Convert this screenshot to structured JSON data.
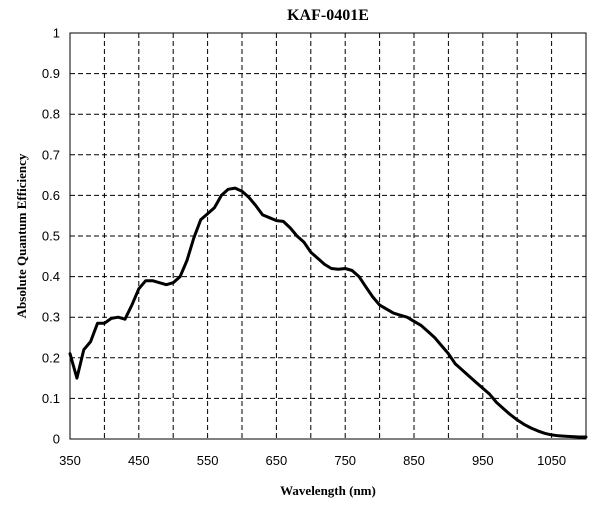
{
  "chart_data": {
    "type": "line",
    "title": "KAF-0401E",
    "xlabel": "Wavelength (nm)",
    "ylabel": "Absolute Quantum Efficiency",
    "xlim": [
      350,
      1100
    ],
    "ylim": [
      0,
      1
    ],
    "xticks": [
      350,
      450,
      550,
      650,
      750,
      850,
      950,
      1050
    ],
    "xtick_labels": [
      "350",
      "450",
      "550",
      "650",
      "750",
      "850",
      "950",
      "1050"
    ],
    "xgrid": [
      350,
      400,
      450,
      500,
      550,
      600,
      650,
      700,
      750,
      800,
      850,
      900,
      950,
      1000,
      1050,
      1100
    ],
    "yticks": [
      0,
      0.1,
      0.2,
      0.3,
      0.4,
      0.5,
      0.6,
      0.7,
      0.8,
      0.9,
      1
    ],
    "ytick_labels": [
      "0",
      "0.1",
      "0.2",
      "0.3",
      "0.4",
      "0.5",
      "0.6",
      "0.7",
      "0.8",
      "0.9",
      "1"
    ],
    "grid": true,
    "series": [
      {
        "x": [
          350,
          360,
          370,
          380,
          390,
          400,
          410,
          420,
          430,
          440,
          450,
          460,
          470,
          480,
          490,
          500,
          510,
          520,
          530,
          540,
          550,
          560,
          570,
          580,
          590,
          600,
          610,
          620,
          630,
          640,
          650,
          660,
          670,
          680,
          690,
          700,
          710,
          720,
          730,
          740,
          750,
          760,
          770,
          780,
          790,
          800,
          810,
          820,
          830,
          840,
          850,
          860,
          870,
          880,
          890,
          900,
          910,
          920,
          930,
          940,
          950,
          960,
          970,
          980,
          990,
          1000,
          1010,
          1020,
          1030,
          1040,
          1050,
          1060,
          1070,
          1080,
          1090,
          1100
        ],
        "y": [
          0.21,
          0.15,
          0.22,
          0.24,
          0.285,
          0.285,
          0.297,
          0.3,
          0.295,
          0.33,
          0.37,
          0.39,
          0.39,
          0.385,
          0.38,
          0.385,
          0.4,
          0.44,
          0.495,
          0.54,
          0.555,
          0.57,
          0.6,
          0.615,
          0.618,
          0.61,
          0.595,
          0.575,
          0.552,
          0.545,
          0.538,
          0.536,
          0.52,
          0.5,
          0.485,
          0.46,
          0.445,
          0.43,
          0.42,
          0.418,
          0.42,
          0.415,
          0.4,
          0.375,
          0.35,
          0.33,
          0.32,
          0.31,
          0.305,
          0.3,
          0.29,
          0.28,
          0.265,
          0.25,
          0.23,
          0.21,
          0.185,
          0.17,
          0.155,
          0.14,
          0.125,
          0.11,
          0.09,
          0.075,
          0.06,
          0.047,
          0.036,
          0.027,
          0.02,
          0.014,
          0.01,
          0.008,
          0.007,
          0.006,
          0.005,
          0.005
        ]
      }
    ]
  }
}
